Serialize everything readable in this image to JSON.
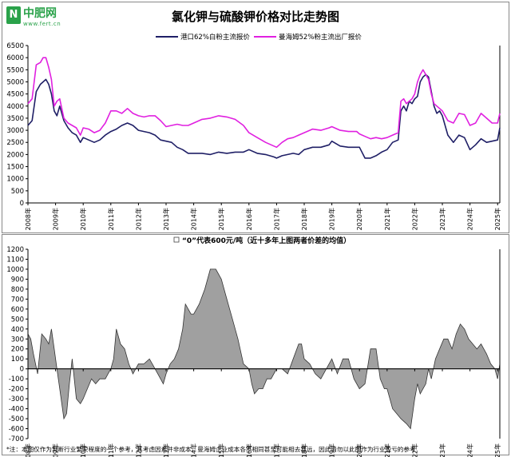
{
  "logo": {
    "badge": "N",
    "name": "中肥网",
    "url": "www.fert.cn"
  },
  "title": "氯化钾与硫酸钾价格对比走势图",
  "chart_data": [
    {
      "type": "line",
      "legend_placement": "top",
      "grid": false,
      "ylim": [
        0,
        6500
      ],
      "yticks": [
        0,
        500,
        1000,
        1500,
        2000,
        2500,
        3000,
        3500,
        4000,
        4500,
        5000,
        5500,
        6000,
        6500
      ],
      "xlim": [
        2008,
        2025.08
      ],
      "xticks": [
        "2008年",
        "2009年",
        "2010年",
        "2011年",
        "2012年",
        "2013年",
        "2014年",
        "2015年",
        "2016年",
        "2017年",
        "2018年",
        "2019年",
        "2020年",
        "2021年",
        "2022年",
        "2023年",
        "2024年",
        "2025年"
      ],
      "series": [
        {
          "name": "港口62%白粉主流报价",
          "color": "#1f1f66",
          "x": [
            2008,
            2008.15,
            2008.3,
            2008.45,
            2008.55,
            2008.65,
            2008.75,
            2008.85,
            2008.95,
            2009.05,
            2009.15,
            2009.3,
            2009.45,
            2009.6,
            2009.75,
            2009.9,
            2010.0,
            2010.2,
            2010.4,
            2010.6,
            2010.8,
            2011.0,
            2011.2,
            2011.4,
            2011.6,
            2011.8,
            2012.0,
            2012.2,
            2012.4,
            2012.6,
            2012.8,
            2013.0,
            2013.2,
            2013.4,
            2013.6,
            2013.8,
            2014.0,
            2014.3,
            2014.6,
            2014.9,
            2015.2,
            2015.5,
            2015.8,
            2016.0,
            2016.3,
            2016.6,
            2016.9,
            2017.0,
            2017.2,
            2017.4,
            2017.6,
            2017.8,
            2018.0,
            2018.3,
            2018.6,
            2018.9,
            2019.0,
            2019.3,
            2019.6,
            2019.9,
            2020.0,
            2020.2,
            2020.4,
            2020.6,
            2020.8,
            2021.0,
            2021.2,
            2021.4,
            2021.5,
            2021.6,
            2021.7,
            2021.8,
            2021.9,
            2022.0,
            2022.1,
            2022.2,
            2022.3,
            2022.4,
            2022.5,
            2022.6,
            2022.7,
            2022.8,
            2022.9,
            2023.0,
            2023.2,
            2023.4,
            2023.6,
            2023.8,
            2024.0,
            2024.2,
            2024.4,
            2024.6,
            2024.8,
            2025.0,
            2025.08
          ],
          "y": [
            3200,
            3400,
            4600,
            4900,
            5000,
            5100,
            4900,
            4500,
            3800,
            3600,
            4000,
            3400,
            3100,
            2900,
            2800,
            2500,
            2700,
            2600,
            2500,
            2600,
            2800,
            2950,
            3050,
            3200,
            3300,
            3200,
            3000,
            2950,
            2900,
            2800,
            2600,
            2550,
            2500,
            2300,
            2200,
            2050,
            2050,
            2050,
            2000,
            2100,
            2050,
            2100,
            2100,
            2200,
            2050,
            2000,
            1900,
            1850,
            1950,
            2000,
            2050,
            2000,
            2200,
            2300,
            2300,
            2400,
            2550,
            2350,
            2300,
            2300,
            2300,
            1850,
            1850,
            1950,
            2100,
            2200,
            2500,
            2600,
            3800,
            4000,
            3800,
            4200,
            4100,
            4300,
            4400,
            5000,
            5200,
            5300,
            5200,
            4600,
            4000,
            3700,
            3800,
            3600,
            2800,
            2500,
            2800,
            2700,
            2200,
            2400,
            2650,
            2500,
            2550,
            2600,
            3100
          ]
        },
        {
          "name": "曼海姆52%粉主流出厂报价",
          "color": "#e020e0",
          "x": [
            2008,
            2008.15,
            2008.3,
            2008.45,
            2008.55,
            2008.65,
            2008.75,
            2008.85,
            2008.95,
            2009.05,
            2009.15,
            2009.3,
            2009.45,
            2009.6,
            2009.75,
            2009.9,
            2010.0,
            2010.2,
            2010.4,
            2010.6,
            2010.8,
            2011.0,
            2011.2,
            2011.4,
            2011.6,
            2011.8,
            2012.0,
            2012.2,
            2012.4,
            2012.6,
            2012.8,
            2013.0,
            2013.2,
            2013.4,
            2013.6,
            2013.8,
            2014.0,
            2014.3,
            2014.6,
            2014.9,
            2015.2,
            2015.5,
            2015.8,
            2016.0,
            2016.3,
            2016.6,
            2016.9,
            2017.0,
            2017.2,
            2017.4,
            2017.6,
            2017.8,
            2018.0,
            2018.3,
            2018.6,
            2018.9,
            2019.0,
            2019.3,
            2019.6,
            2019.9,
            2020.0,
            2020.2,
            2020.4,
            2020.6,
            2020.8,
            2021.0,
            2021.2,
            2021.4,
            2021.5,
            2021.6,
            2021.7,
            2021.8,
            2021.9,
            2022.0,
            2022.1,
            2022.2,
            2022.3,
            2022.4,
            2022.5,
            2022.6,
            2022.7,
            2022.8,
            2022.9,
            2023.0,
            2023.2,
            2023.4,
            2023.6,
            2023.8,
            2024.0,
            2024.2,
            2024.4,
            2024.6,
            2024.8,
            2025.0,
            2025.08
          ],
          "y": [
            4100,
            4300,
            5700,
            5800,
            6000,
            6000,
            5600,
            5100,
            4000,
            4200,
            4300,
            3500,
            3300,
            3200,
            3100,
            2800,
            3100,
            3050,
            2900,
            3000,
            3300,
            3800,
            3800,
            3700,
            3900,
            3700,
            3600,
            3550,
            3600,
            3600,
            3400,
            3150,
            3200,
            3250,
            3200,
            3200,
            3300,
            3450,
            3500,
            3600,
            3550,
            3450,
            3200,
            2900,
            2700,
            2500,
            2350,
            2300,
            2500,
            2650,
            2700,
            2800,
            2900,
            3050,
            3000,
            3100,
            3150,
            3000,
            2950,
            2950,
            2850,
            2750,
            2650,
            2700,
            2650,
            2700,
            2800,
            2900,
            4200,
            4300,
            4100,
            4200,
            4300,
            4500,
            5000,
            5300,
            5500,
            5300,
            5100,
            4500,
            4100,
            4000,
            3900,
            3800,
            3400,
            3300,
            3700,
            3650,
            3200,
            3300,
            3700,
            3500,
            3300,
            3300,
            3700
          ]
        }
      ]
    },
    {
      "type": "area",
      "title": "“0”代表600元/吨（近十多年上图两者价差的均值）",
      "grid": false,
      "ylim": [
        -700,
        1200
      ],
      "yticks": [
        -700,
        -600,
        -500,
        -400,
        -300,
        -200,
        -100,
        0,
        100,
        200,
        300,
        400,
        500,
        600,
        700,
        800,
        900,
        1000,
        1100,
        1200
      ],
      "xlim": [
        2008,
        2025.08
      ],
      "xticks": [
        "2008年",
        "2009年",
        "2010年",
        "2011年",
        "2012年",
        "2013年",
        "2014年",
        "2015年",
        "2016年",
        "2017年",
        "2018年",
        "2019年",
        "2020年",
        "2021年",
        "2022年",
        "2023年",
        "2024年",
        "2025年"
      ],
      "series": [
        {
          "color": "#a0a0a0",
          "x": [
            2008,
            2008.1,
            2008.2,
            2008.35,
            2008.5,
            2008.65,
            2008.75,
            2008.85,
            2008.95,
            2009.05,
            2009.15,
            2009.3,
            2009.4,
            2009.5,
            2009.6,
            2009.75,
            2009.9,
            2010.0,
            2010.15,
            2010.3,
            2010.45,
            2010.6,
            2010.8,
            2010.9,
            2011.0,
            2011.1,
            2011.2,
            2011.35,
            2011.5,
            2011.65,
            2011.8,
            2012.0,
            2012.2,
            2012.4,
            2012.6,
            2012.8,
            2012.9,
            2013.0,
            2013.15,
            2013.3,
            2013.45,
            2013.6,
            2013.7,
            2013.8,
            2013.9,
            2014.0,
            2014.2,
            2014.4,
            2014.6,
            2014.8,
            2015.0,
            2015.2,
            2015.4,
            2015.6,
            2015.8,
            2016.0,
            2016.1,
            2016.2,
            2016.35,
            2016.5,
            2016.65,
            2016.8,
            2017.0,
            2017.2,
            2017.4,
            2017.6,
            2017.8,
            2017.9,
            2018.0,
            2018.2,
            2018.4,
            2018.6,
            2018.8,
            2019.0,
            2019.2,
            2019.4,
            2019.6,
            2019.8,
            2020.0,
            2020.2,
            2020.4,
            2020.6,
            2020.75,
            2020.9,
            2021.0,
            2021.1,
            2021.2,
            2021.35,
            2021.5,
            2021.7,
            2021.85,
            2022.0,
            2022.1,
            2022.2,
            2022.3,
            2022.4,
            2022.5,
            2022.6,
            2022.75,
            2022.9,
            2023.05,
            2023.2,
            2023.35,
            2023.5,
            2023.65,
            2023.8,
            2023.95,
            2024.1,
            2024.25,
            2024.4,
            2024.5,
            2024.6,
            2024.75,
            2024.9,
            2025.0,
            2025.08
          ],
          "y": [
            350,
            300,
            150,
            -50,
            350,
            300,
            250,
            400,
            200,
            0,
            -200,
            -500,
            -450,
            -150,
            100,
            -300,
            -350,
            -300,
            -200,
            -100,
            -150,
            -100,
            -100,
            -50,
            0,
            100,
            400,
            250,
            200,
            50,
            -50,
            50,
            50,
            100,
            0,
            -100,
            -150,
            -50,
            50,
            100,
            200,
            400,
            650,
            600,
            550,
            550,
            650,
            800,
            1000,
            1000,
            900,
            700,
            500,
            300,
            50,
            0,
            -150,
            -250,
            -200,
            -200,
            -100,
            -100,
            0,
            0,
            -50,
            100,
            250,
            250,
            100,
            50,
            -50,
            -100,
            0,
            100,
            -50,
            100,
            100,
            -100,
            -200,
            -150,
            200,
            200,
            -100,
            -200,
            -200,
            -300,
            -400,
            -450,
            -500,
            -550,
            -600,
            -300,
            -150,
            -250,
            -200,
            -150,
            0,
            -100,
            100,
            200,
            300,
            300,
            200,
            350,
            450,
            400,
            300,
            250,
            200,
            250,
            200,
            150,
            50,
            0,
            -100,
            50
          ]
        }
      ],
      "annotations": [
        "*注：本图仅作为判断行业繁荣程度的一个参考，其考虑因素并非成本，曼海姆企业成本各不相同甚至可能相去甚远，因此请勿以此图作为行业盈亏的参考"
      ]
    }
  ]
}
